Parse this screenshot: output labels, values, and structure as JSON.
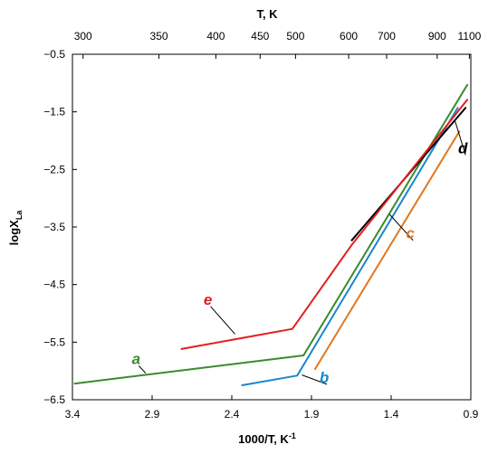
{
  "chart_data": {
    "type": "line",
    "xlabel_base": "1000/T, K",
    "xlabel_sup": "-1",
    "top_xlabel": "T, K",
    "ylabel_base": "logX",
    "ylabel_sub": "La",
    "xlim": [
      3.4,
      0.9
    ],
    "ylim": [
      -6.5,
      -0.5
    ],
    "x_ticks": [
      3.4,
      2.9,
      2.4,
      1.9,
      1.4,
      0.9
    ],
    "x_tick_labels": [
      "3.4",
      "2.9",
      "2.4",
      "1.9",
      "1.4",
      "0.9"
    ],
    "y_ticks": [
      -0.5,
      -1.5,
      -2.5,
      -3.5,
      -4.5,
      -5.5,
      -6.5
    ],
    "y_tick_labels": [
      "−0.5",
      "−1.5",
      "−2.5",
      "−3.5",
      "−4.5",
      "−5.5",
      "−6.5"
    ],
    "top_ticks": [
      300,
      350,
      400,
      450,
      500,
      600,
      700,
      900,
      1100
    ],
    "top_tick_labels": [
      "300",
      "350",
      "400",
      "450",
      "500",
      "600",
      "700",
      "900",
      "1100"
    ],
    "series": [
      {
        "name": "a",
        "color": "#3a8a2e",
        "x": [
          3.39,
          1.95,
          0.92
        ],
        "y": [
          -6.22,
          -5.73,
          -1.02
        ]
      },
      {
        "name": "b",
        "color": "#1a86d0",
        "x": [
          2.34,
          1.99,
          0.98
        ],
        "y": [
          -6.25,
          -6.08,
          -1.42
        ]
      },
      {
        "name": "c",
        "color": "#e07820",
        "x": [
          1.88,
          0.97
        ],
        "y": [
          -5.98,
          -1.83
        ]
      },
      {
        "name": "d",
        "color": "#000000",
        "x": [
          1.65,
          0.93
        ],
        "y": [
          -3.74,
          -1.42
        ]
      },
      {
        "name": "e",
        "color": "#e31f1f",
        "x": [
          2.72,
          2.02,
          1.65,
          0.92
        ],
        "y": [
          -5.62,
          -5.27,
          -3.82,
          -1.28
        ]
      }
    ],
    "annotations": [
      {
        "text": "a",
        "color": "#3a8a2e",
        "label_x": 3.0,
        "label_y": -5.88,
        "pt_x": 2.94,
        "pt_y": -6.04
      },
      {
        "text": "b",
        "color": "#1a86d0",
        "label_x": 1.82,
        "label_y": -6.2,
        "pt_x": 1.96,
        "pt_y": -6.07
      },
      {
        "text": "c",
        "color": "#e07820",
        "label_x": 1.28,
        "label_y": -3.7,
        "pt_x": 1.41,
        "pt_y": -3.28
      },
      {
        "text": "d",
        "color": "#000000",
        "label_x": 0.95,
        "label_y": -2.22,
        "pt_x": 1.0,
        "pt_y": -1.65
      },
      {
        "text": "e",
        "color": "#e31f1f",
        "label_x": 2.55,
        "label_y": -4.85,
        "pt_x": 2.38,
        "pt_y": -5.36
      }
    ]
  }
}
